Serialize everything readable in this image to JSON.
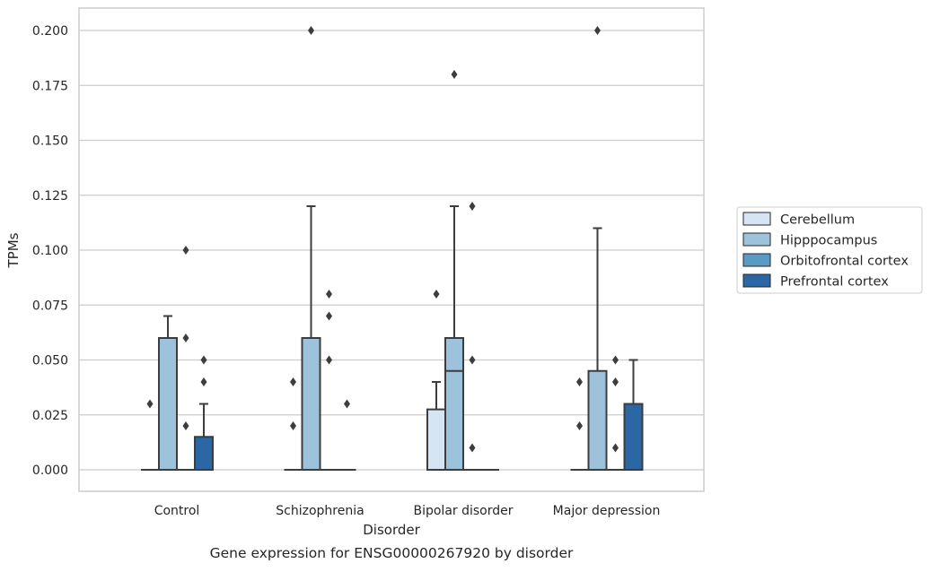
{
  "chart_data": {
    "type": "box",
    "caption": "Gene expression for ENSG00000267920 by disorder",
    "xlabel": "Disorder",
    "ylabel": "TPMs",
    "ylim": [
      -0.01,
      0.21
    ],
    "yticks": [
      "0.000",
      "0.025",
      "0.050",
      "0.075",
      "0.100",
      "0.125",
      "0.150",
      "0.175",
      "0.200"
    ],
    "grid": true,
    "legend_position": "right",
    "categories": [
      "Control",
      "Schizophrenia",
      "Bipolar disorder",
      "Major depression"
    ],
    "series": [
      {
        "name": "Cerebellum",
        "color": "#d6e5f3",
        "boxes": [
          {
            "q1": 0,
            "median": 0,
            "q3": 0,
            "whisker_low": 0,
            "whisker_high": 0,
            "outliers": [
              0.03
            ]
          },
          {
            "q1": 0,
            "median": 0,
            "q3": 0,
            "whisker_low": 0,
            "whisker_high": 0,
            "outliers": [
              0.02,
              0.04
            ]
          },
          {
            "q1": 0,
            "median": 0,
            "q3": 0.0275,
            "whisker_low": 0,
            "whisker_high": 0.04,
            "outliers": [
              0.08
            ]
          },
          {
            "q1": 0,
            "median": 0,
            "q3": 0,
            "whisker_low": 0,
            "whisker_high": 0,
            "outliers": [
              0.02,
              0.04
            ]
          }
        ]
      },
      {
        "name": "Hipppocampus",
        "color": "#9dc2dc",
        "boxes": [
          {
            "q1": 0,
            "median": 0,
            "q3": 0.06,
            "whisker_low": 0,
            "whisker_high": 0.07,
            "outliers": []
          },
          {
            "q1": 0,
            "median": 0,
            "q3": 0.06,
            "whisker_low": 0,
            "whisker_high": 0.12,
            "outliers": [
              0.2
            ]
          },
          {
            "q1": 0,
            "median": 0.045,
            "q3": 0.06,
            "whisker_low": 0,
            "whisker_high": 0.12,
            "outliers": [
              0.18
            ]
          },
          {
            "q1": 0,
            "median": 0,
            "q3": 0.045,
            "whisker_low": 0,
            "whisker_high": 0.11,
            "outliers": [
              0.2
            ]
          }
        ]
      },
      {
        "name": "Orbitofrontal cortex",
        "color": "#5a9ac6",
        "boxes": [
          {
            "q1": 0,
            "median": 0,
            "q3": 0,
            "whisker_low": 0,
            "whisker_high": 0,
            "outliers": [
              0.02,
              0.06,
              0.1
            ]
          },
          {
            "q1": 0,
            "median": 0,
            "q3": 0,
            "whisker_low": 0,
            "whisker_high": 0,
            "outliers": [
              0.05,
              0.07,
              0.08
            ]
          },
          {
            "q1": 0,
            "median": 0,
            "q3": 0,
            "whisker_low": 0,
            "whisker_high": 0,
            "outliers": [
              0.01,
              0.05,
              0.12
            ]
          },
          {
            "q1": 0,
            "median": 0,
            "q3": 0,
            "whisker_low": 0,
            "whisker_high": 0,
            "outliers": [
              0.01,
              0.04,
              0.05
            ]
          }
        ]
      },
      {
        "name": "Prefrontal cortex",
        "color": "#2b67a4",
        "boxes": [
          {
            "q1": 0,
            "median": 0,
            "q3": 0.015,
            "whisker_low": 0,
            "whisker_high": 0.03,
            "outliers": [
              0.04,
              0.05
            ]
          },
          {
            "q1": 0,
            "median": 0,
            "q3": 0,
            "whisker_low": 0,
            "whisker_high": 0,
            "outliers": [
              0.03
            ]
          },
          {
            "q1": 0,
            "median": 0,
            "q3": 0,
            "whisker_low": 0,
            "whisker_high": 0,
            "outliers": []
          },
          {
            "q1": 0,
            "median": 0,
            "q3": 0.03,
            "whisker_low": 0,
            "whisker_high": 0.05,
            "outliers": []
          }
        ]
      }
    ]
  }
}
